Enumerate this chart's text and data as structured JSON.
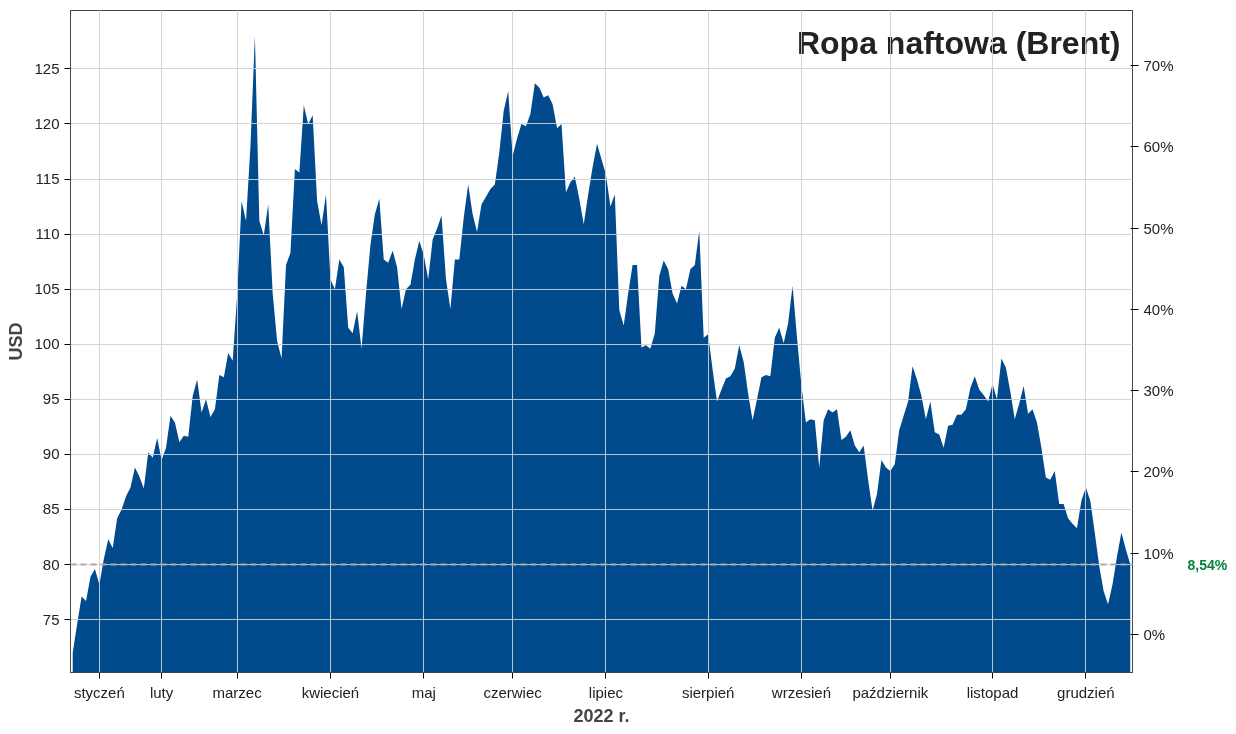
{
  "chart_data": {
    "type": "area",
    "title": "Ropa naftowa (Brent)",
    "xlabel": "2022 r.",
    "ylabel": "USD",
    "color": "#004a8d",
    "values": [
      72.0,
      74.6,
      77.1,
      76.7,
      78.9,
      79.6,
      78.2,
      80.5,
      82.3,
      81.5,
      84.2,
      85.0,
      86.2,
      87.0,
      88.8,
      88.0,
      86.9,
      90.2,
      89.7,
      91.5,
      89.5,
      90.6,
      93.5,
      92.9,
      91.1,
      91.7,
      91.6,
      95.3,
      96.8,
      93.8,
      95.0,
      93.4,
      94.1,
      97.2,
      97.0,
      99.2,
      98.5,
      104.4,
      113.0,
      111.2,
      118.0,
      128.0,
      111.2,
      109.9,
      112.7,
      104.6,
      100.3,
      98.7,
      107.2,
      108.3,
      115.9,
      115.6,
      121.7,
      120.0,
      120.8,
      113.0,
      110.8,
      113.6,
      105.9,
      105.0,
      107.7,
      107.0,
      101.5,
      101.0,
      103.0,
      99.6,
      104.6,
      109.0,
      111.8,
      113.2,
      107.7,
      107.4,
      108.5,
      107.0,
      103.2,
      105.0,
      105.4,
      107.7,
      109.4,
      108.1,
      105.9,
      109.5,
      110.5,
      111.7,
      105.9,
      103.2,
      107.7,
      107.7,
      111.5,
      114.5,
      111.8,
      110.2,
      112.7,
      113.4,
      114.1,
      114.5,
      117.4,
      121.2,
      123.0,
      117.1,
      118.7,
      120.0,
      119.8,
      120.9,
      123.7,
      123.3,
      122.4,
      122.6,
      121.8,
      119.6,
      120.0,
      113.8,
      114.7,
      115.2,
      113.2,
      110.9,
      113.6,
      116.1,
      118.2,
      116.8,
      115.4,
      112.5,
      113.6,
      103.1,
      101.7,
      104.6,
      107.2,
      107.2,
      99.7,
      99.9,
      99.6,
      101.0,
      106.2,
      107.6,
      106.8,
      104.6,
      103.7,
      105.3,
      105.0,
      106.8,
      107.2,
      110.3,
      100.6,
      100.9,
      97.7,
      94.8,
      95.9,
      96.9,
      97.1,
      97.8,
      99.9,
      98.4,
      95.5,
      93.1,
      95.0,
      97.0,
      97.2,
      97.1,
      100.6,
      101.5,
      100.1,
      101.9,
      105.3,
      100.6,
      96.2,
      92.9,
      93.2,
      93.1,
      88.8,
      93.1,
      94.1,
      93.8,
      94.1,
      91.3,
      91.6,
      92.2,
      90.8,
      90.2,
      90.8,
      87.7,
      84.9,
      86.4,
      89.5,
      88.8,
      88.5,
      89.1,
      92.2,
      93.5,
      94.8,
      98.0,
      96.8,
      95.3,
      93.2,
      94.8,
      92.0,
      91.8,
      90.6,
      92.6,
      92.7,
      93.6,
      93.6,
      94.1,
      96.0,
      97.1,
      95.9,
      95.4,
      94.8,
      96.4,
      95.0,
      98.7,
      97.9,
      95.7,
      93.2,
      94.6,
      96.2,
      93.7,
      94.1,
      92.9,
      90.6,
      87.9,
      87.7,
      88.5,
      85.5,
      85.5,
      84.2,
      83.7,
      83.3,
      85.8,
      87.0,
      85.8,
      82.9,
      79.9,
      77.6,
      76.4,
      78.2,
      80.7,
      82.9,
      81.4,
      80.0
    ],
    "ylim": [
      70.2,
      130.3
    ],
    "categories": [
      null,
      null,
      null,
      null,
      null,
      null,
      "styczeń",
      null,
      null,
      null,
      null,
      null,
      null,
      null,
      null,
      null,
      null,
      null,
      null,
      null,
      "luty",
      null,
      null,
      null,
      null,
      null,
      null,
      null,
      null,
      null,
      null,
      null,
      null,
      null,
      null,
      null,
      null,
      "marzec",
      null,
      null,
      null,
      null,
      null,
      null,
      null,
      null,
      null,
      null,
      null,
      null,
      null,
      null,
      null,
      null,
      null,
      null,
      null,
      null,
      "kwiecień",
      null,
      null,
      null,
      null,
      null,
      null,
      null,
      null,
      null,
      null,
      null,
      null,
      null,
      null,
      null,
      null,
      null,
      null,
      null,
      null,
      "maj",
      null,
      null,
      null,
      null,
      null,
      null,
      null,
      null,
      null,
      null,
      null,
      null,
      null,
      null,
      null,
      null,
      null,
      null,
      null,
      "czerwiec",
      null,
      null,
      null,
      null,
      null,
      null,
      null,
      null,
      null,
      null,
      null,
      null,
      null,
      null,
      null,
      null,
      null,
      null,
      null,
      null,
      "lipiec",
      null,
      null,
      null,
      null,
      null,
      null,
      null,
      null,
      null,
      null,
      null,
      null,
      null,
      null,
      null,
      null,
      null,
      null,
      null,
      null,
      null,
      null,
      "sierpień",
      null,
      null,
      null,
      null,
      null,
      null,
      null,
      null,
      null,
      null,
      null,
      null,
      null,
      null,
      null,
      null,
      null,
      null,
      null,
      null,
      "wrzesień",
      null,
      null,
      null,
      null,
      null,
      null,
      null,
      null,
      null,
      null,
      null,
      null,
      null,
      null,
      null,
      null,
      null,
      null,
      null,
      "październik",
      null,
      null,
      null,
      null,
      null,
      null,
      null,
      null,
      null,
      null,
      null,
      null,
      null,
      null,
      null,
      null,
      null,
      null,
      null,
      null,
      null,
      null,
      "listopad",
      null,
      null,
      null,
      null,
      null,
      null,
      null,
      null,
      null,
      null,
      null,
      null,
      null,
      null,
      null,
      null,
      null,
      null,
      null,
      null,
      "grudzień",
      null,
      null,
      null,
      null,
      null,
      null,
      null,
      null,
      null,
      null
    ],
    "yticks": [
      75,
      80,
      85,
      90,
      95,
      100,
      105,
      110,
      115,
      120,
      125
    ],
    "y2lim": [
      -4.7,
      76.8
    ],
    "y2ticks": [
      {
        "value": 0,
        "label": "0%"
      },
      {
        "value": 10,
        "label": "10%"
      },
      {
        "value": 20,
        "label": "20%"
      },
      {
        "value": 30,
        "label": "30%"
      },
      {
        "value": 40,
        "label": "40%"
      },
      {
        "value": 50,
        "label": "50%"
      },
      {
        "value": 60,
        "label": "60%"
      },
      {
        "value": 70,
        "label": "70%"
      }
    ],
    "ref_lines": [
      {
        "axis": "y",
        "value": 80,
        "color": "#aaaaaa",
        "line_style": "dashed"
      }
    ],
    "annotations": [
      "8,54%"
    ],
    "grid": true
  }
}
